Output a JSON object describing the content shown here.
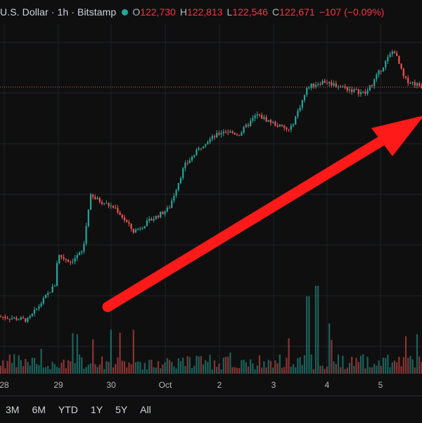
{
  "legend": {
    "title": "U.S. Dollar · 1h · Bitstamp",
    "status_color": "#26a69a",
    "open_label": "O",
    "open_value": "122,730",
    "high_label": "H",
    "high_value": "122,813",
    "low_label": "L",
    "low_value": "122,546",
    "close_label": "C",
    "close_value": "122,671",
    "change": "−107 (−0.09%)"
  },
  "range_buttons": [
    "3M",
    "6M",
    "YTD",
    "1Y",
    "5Y",
    "All"
  ],
  "colors": {
    "up": "#26a69a",
    "down": "#ef5350",
    "background": "#0f0f0f",
    "grid": "#1e222d",
    "arrow": "#ff1a1a",
    "price_line": "#ef5350"
  },
  "chart_data": {
    "type": "candlestick",
    "x_ticks": [
      "28",
      "29",
      "30",
      "Oct",
      "2",
      "3",
      "4",
      "5"
    ],
    "current_close": 122671,
    "approx_ylim": [
      108500,
      126000
    ],
    "price_path": [
      [
        "28",
        109700
      ],
      [
        "28.5",
        109500
      ],
      [
        "29",
        111500
      ],
      [
        "29.1",
        113200
      ],
      [
        "29.5",
        112800
      ],
      [
        "29.8",
        113400
      ],
      [
        "30",
        116500
      ],
      [
        "30.4",
        115800
      ],
      [
        "30.7",
        114500
      ],
      [
        "Oct",
        115300
      ],
      [
        "Oct.3",
        115800
      ],
      [
        "Oct.6",
        118200
      ],
      [
        "Oct.9",
        119500
      ],
      [
        "2",
        120200
      ],
      [
        "2.3",
        120000
      ],
      [
        "2.6",
        121100
      ],
      [
        "2.9",
        120500
      ],
      [
        "3",
        120200
      ],
      [
        "3.2",
        122700
      ],
      [
        "3.5",
        123000
      ],
      [
        "3.8",
        122500
      ],
      [
        "4",
        122300
      ],
      [
        "4.3",
        124200
      ],
      [
        "4.5",
        124800
      ],
      [
        "4.8",
        123100
      ],
      [
        "5",
        122700
      ]
    ],
    "annotation": "red upward arrow"
  }
}
